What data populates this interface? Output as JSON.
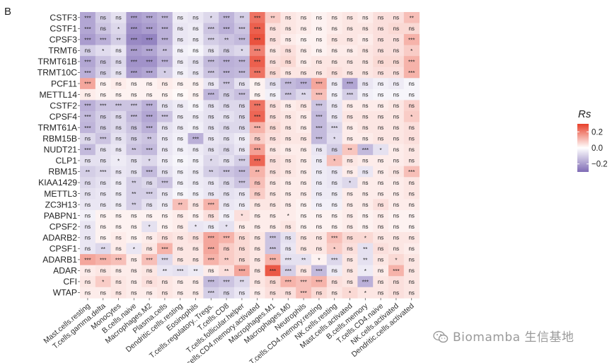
{
  "panel_label": "B",
  "watermark": "Biomamba 生信基地",
  "colors": {
    "low": "#7f6bb5",
    "mid": "#ffffff",
    "high": "#e8402a"
  },
  "chart_data": {
    "type": "heatmap",
    "title": "",
    "legend_title": "Rs",
    "legend_ticks": [
      0.2,
      0.0,
      -0.2
    ],
    "legend_tick_labels": [
      "0.2",
      "0.0",
      "−0.2"
    ],
    "value_range": [
      -0.3,
      0.3
    ],
    "rows": [
      "CSTF3",
      "CSTF1",
      "CPSF3",
      "TRMT6",
      "TRMT61B",
      "TRMT10C",
      "PCF11",
      "METTL14",
      "CSTF2",
      "CPSF4",
      "TRMT61A",
      "RBM15B",
      "NUDT21",
      "CLP1",
      "RBM15",
      "KIAA1429",
      "METTL3",
      "ZC3H13",
      "PABPN1",
      "CPSF2",
      "ADARB2",
      "CPSF1",
      "ADARB1",
      "ADAR",
      "CFI",
      "WTAP"
    ],
    "columns": [
      "Mast.cells.resting",
      "T.cells.gamma.delta",
      "Monocytes",
      "B.cells.naive",
      "Macrophages.M2",
      "Plasma.cells",
      "Dendritic.cells.resting",
      "Eosinophils",
      "T.cells.regulatory..Tregs.",
      "T.cells.CD8",
      "T.cells.follicular.helper",
      "T.cells.CD4.memory.activated",
      "Macrophages.M1",
      "Macrophages.M0",
      "Neutrophils",
      "T.cells.CD4.memory.resting",
      "NK.cells.resting",
      "Mast.cells.activated",
      "B.cells.memory",
      "T.cells.CD4.naive",
      "NK.cells.activated",
      "Dendritic.cells.activated"
    ],
    "values": [
      [
        -0.18,
        -0.1,
        -0.06,
        -0.2,
        -0.18,
        -0.15,
        -0.04,
        -0.05,
        -0.08,
        -0.15,
        -0.1,
        0.22,
        0.08,
        0.04,
        0.03,
        0.02,
        0.03,
        0.04,
        0.03,
        0.05,
        0.05,
        0.1
      ],
      [
        -0.18,
        -0.12,
        -0.08,
        -0.22,
        -0.2,
        -0.16,
        -0.05,
        -0.04,
        -0.12,
        -0.16,
        -0.12,
        0.25,
        0.05,
        0.04,
        0.03,
        0.02,
        0.03,
        0.04,
        0.04,
        0.05,
        0.06,
        0.06
      ],
      [
        -0.2,
        -0.16,
        -0.1,
        -0.24,
        -0.25,
        -0.16,
        -0.05,
        -0.04,
        -0.1,
        -0.12,
        -0.14,
        0.27,
        0.05,
        0.03,
        0.02,
        0.02,
        0.04,
        0.04,
        0.03,
        0.05,
        0.05,
        0.12
      ],
      [
        -0.1,
        -0.07,
        -0.05,
        -0.2,
        -0.18,
        -0.13,
        -0.03,
        -0.02,
        -0.06,
        -0.1,
        -0.08,
        0.2,
        0.04,
        0.05,
        0.03,
        0.02,
        0.03,
        0.03,
        0.04,
        0.05,
        0.05,
        0.08
      ],
      [
        -0.18,
        -0.12,
        -0.08,
        -0.22,
        -0.22,
        -0.16,
        -0.04,
        -0.06,
        -0.14,
        -0.16,
        -0.15,
        0.25,
        0.05,
        0.06,
        0.03,
        0.04,
        0.04,
        0.04,
        0.04,
        0.06,
        0.06,
        0.12
      ],
      [
        -0.16,
        -0.1,
        -0.06,
        -0.2,
        -0.18,
        -0.1,
        -0.03,
        -0.05,
        -0.12,
        -0.15,
        -0.14,
        0.22,
        0.06,
        0.04,
        0.04,
        0.04,
        0.05,
        0.04,
        0.04,
        0.05,
        0.05,
        0.12
      ],
      [
        0.14,
        0.02,
        0.03,
        0.02,
        0.02,
        0.03,
        0.02,
        0.02,
        -0.05,
        -0.12,
        -0.06,
        0.02,
        -0.06,
        -0.14,
        -0.16,
        0.14,
        -0.04,
        -0.18,
        -0.05,
        -0.03,
        -0.04,
        -0.02
      ],
      [
        0.03,
        0.02,
        0.02,
        0.02,
        0.02,
        0.02,
        0.01,
        0.02,
        -0.15,
        -0.1,
        -0.13,
        0.02,
        -0.03,
        -0.12,
        -0.08,
        0.1,
        -0.03,
        -0.1,
        -0.03,
        -0.02,
        -0.02,
        -0.02
      ],
      [
        -0.16,
        -0.12,
        -0.12,
        -0.12,
        -0.16,
        -0.06,
        -0.04,
        -0.02,
        -0.06,
        -0.08,
        -0.08,
        0.22,
        0.05,
        0.03,
        0.04,
        -0.12,
        -0.05,
        0.03,
        0.03,
        0.03,
        0.04,
        0.07
      ],
      [
        -0.14,
        -0.1,
        -0.08,
        -0.14,
        -0.18,
        -0.12,
        -0.04,
        -0.04,
        -0.06,
        -0.06,
        -0.08,
        0.24,
        0.05,
        0.04,
        0.03,
        -0.14,
        -0.05,
        0.04,
        0.04,
        0.04,
        0.04,
        0.08
      ],
      [
        -0.15,
        -0.1,
        -0.08,
        -0.12,
        -0.16,
        -0.06,
        -0.04,
        -0.03,
        -0.06,
        -0.08,
        -0.08,
        0.12,
        0.06,
        0.04,
        0.03,
        -0.14,
        -0.08,
        0.03,
        0.04,
        0.04,
        0.04,
        0.05
      ],
      [
        -0.08,
        -0.12,
        -0.06,
        -0.1,
        -0.12,
        -0.05,
        -0.03,
        -0.16,
        -0.05,
        -0.06,
        -0.04,
        0.08,
        0.05,
        0.04,
        0.04,
        -0.14,
        -0.07,
        0.03,
        0.03,
        0.04,
        0.04,
        0.05
      ],
      [
        -0.14,
        -0.06,
        -0.05,
        -0.12,
        -0.14,
        -0.05,
        -0.03,
        -0.04,
        -0.06,
        -0.08,
        -0.05,
        0.15,
        0.04,
        0.03,
        0.03,
        -0.05,
        -0.1,
        0.09,
        -0.14,
        -0.06,
        0.03,
        0.04
      ],
      [
        -0.06,
        -0.06,
        -0.04,
        -0.06,
        -0.08,
        -0.04,
        -0.02,
        -0.03,
        -0.08,
        -0.06,
        -0.1,
        0.24,
        0.05,
        0.04,
        0.03,
        -0.04,
        0.1,
        0.04,
        0.03,
        0.03,
        0.03,
        0.04
      ],
      [
        -0.1,
        -0.08,
        -0.05,
        -0.06,
        -0.14,
        -0.06,
        -0.03,
        -0.04,
        -0.1,
        -0.12,
        -0.14,
        0.12,
        0.05,
        0.04,
        0.03,
        -0.04,
        -0.05,
        0.03,
        -0.05,
        0.03,
        0.04,
        0.1
      ],
      [
        -0.08,
        -0.06,
        -0.04,
        -0.1,
        -0.08,
        -0.12,
        -0.03,
        -0.04,
        -0.05,
        -0.08,
        -0.12,
        0.1,
        0.04,
        0.03,
        0.03,
        -0.04,
        -0.05,
        -0.08,
        0.03,
        0.03,
        0.03,
        0.04
      ],
      [
        -0.06,
        -0.05,
        -0.04,
        -0.1,
        -0.1,
        -0.05,
        -0.02,
        -0.03,
        -0.05,
        -0.06,
        -0.05,
        0.08,
        0.04,
        0.03,
        0.03,
        -0.04,
        -0.04,
        0.03,
        0.03,
        0.03,
        0.03,
        0.04
      ],
      [
        -0.05,
        -0.05,
        -0.04,
        -0.1,
        -0.06,
        -0.04,
        0.1,
        0.04,
        0.12,
        -0.05,
        -0.04,
        0.04,
        0.04,
        0.03,
        0.02,
        -0.03,
        -0.03,
        0.03,
        0.03,
        0.05,
        0.03,
        0.03
      ],
      [
        -0.03,
        0.02,
        0.02,
        0.02,
        0.02,
        0.02,
        0.03,
        0.02,
        0.05,
        -0.03,
        0.05,
        0.03,
        0.03,
        0.03,
        0.02,
        0.02,
        0.02,
        0.03,
        0.02,
        0.03,
        0.02,
        0.02
      ],
      [
        -0.05,
        0.02,
        0.02,
        0.02,
        -0.06,
        0.02,
        0.03,
        -0.05,
        -0.04,
        -0.06,
        0.03,
        0.03,
        0.03,
        0.04,
        0.02,
        0.02,
        0.02,
        0.03,
        0.02,
        0.03,
        0.02,
        0.02
      ],
      [
        -0.05,
        0.02,
        0.03,
        0.02,
        0.03,
        0.05,
        0.04,
        0.05,
        0.14,
        0.12,
        0.06,
        0.04,
        -0.12,
        -0.06,
        0.04,
        0.04,
        0.1,
        0.06,
        0.06,
        0.04,
        0.04,
        0.04
      ],
      [
        -0.05,
        -0.08,
        0.03,
        -0.05,
        0.04,
        0.12,
        0.04,
        0.04,
        0.14,
        0.08,
        0.06,
        0.04,
        -0.12,
        -0.05,
        0.04,
        0.04,
        0.08,
        0.05,
        -0.06,
        0.05,
        0.04,
        0.03
      ],
      [
        0.14,
        0.12,
        0.1,
        0.03,
        0.1,
        -0.08,
        0.04,
        0.04,
        0.12,
        0.08,
        0.06,
        0.04,
        0.12,
        -0.06,
        -0.06,
        0.02,
        -0.08,
        0.04,
        -0.06,
        0.04,
        0.06,
        0.04
      ],
      [
        0.03,
        0.04,
        0.03,
        0.03,
        0.04,
        -0.05,
        -0.06,
        -0.04,
        0.03,
        0.05,
        0.14,
        0.04,
        0.26,
        -0.1,
        0.04,
        -0.14,
        -0.04,
        0.04,
        -0.04,
        0.03,
        0.12,
        0.04
      ],
      [
        0.04,
        0.08,
        0.04,
        0.03,
        0.05,
        0.04,
        0.03,
        0.03,
        -0.14,
        -0.12,
        -0.08,
        0.04,
        0.06,
        0.12,
        0.1,
        0.12,
        0.05,
        0.04,
        -0.16,
        0.04,
        0.05,
        0.04
      ],
      [
        0.03,
        0.03,
        0.04,
        0.03,
        0.03,
        0.04,
        0.03,
        0.03,
        -0.1,
        -0.08,
        -0.05,
        0.03,
        0.05,
        0.05,
        0.1,
        0.06,
        0.04,
        0.06,
        0.04,
        0.04,
        0.05,
        0.04
      ]
    ],
    "significance": [
      [
        "***",
        "ns",
        "ns",
        "***",
        "***",
        "***",
        "ns",
        "ns",
        "*",
        "***",
        "**",
        "***",
        "**",
        "ns",
        "ns",
        "ns",
        "ns",
        "ns",
        "ns",
        "ns",
        "ns",
        "**"
      ],
      [
        "***",
        "ns",
        "*",
        "***",
        "***",
        "***",
        "ns",
        "ns",
        "***",
        "***",
        "***",
        "***",
        "ns",
        "ns",
        "ns",
        "ns",
        "ns",
        "ns",
        "ns",
        "ns",
        "ns",
        "ns"
      ],
      [
        "***",
        "***",
        "**",
        "***",
        "***",
        "***",
        "ns",
        "ns",
        "***",
        "**",
        "***",
        "***",
        "ns",
        "ns",
        "ns",
        "ns",
        "ns",
        "ns",
        "ns",
        "ns",
        "ns",
        "***"
      ],
      [
        "ns",
        "*",
        "ns",
        "***",
        "***",
        "**",
        "ns",
        "ns",
        "ns",
        "ns",
        "*",
        "***",
        "ns",
        "ns",
        "ns",
        "ns",
        "ns",
        "ns",
        "ns",
        "ns",
        "ns",
        "*"
      ],
      [
        "***",
        "ns",
        "ns",
        "***",
        "***",
        "***",
        "ns",
        "ns",
        "***",
        "***",
        "***",
        "***",
        "ns",
        "ns",
        "ns",
        "ns",
        "ns",
        "ns",
        "ns",
        "ns",
        "ns",
        "***"
      ],
      [
        "***",
        "ns",
        "ns",
        "***",
        "***",
        "*",
        "ns",
        "ns",
        "***",
        "***",
        "***",
        "***",
        "ns",
        "ns",
        "ns",
        "ns",
        "ns",
        "ns",
        "ns",
        "ns",
        "ns",
        "***"
      ],
      [
        "***",
        "ns",
        "ns",
        "ns",
        "ns",
        "ns",
        "ns",
        "ns",
        "ns",
        "***",
        "ns",
        "ns",
        "ns",
        "***",
        "***",
        "***",
        "ns",
        "***",
        "ns",
        "ns",
        "ns",
        "ns"
      ],
      [
        "ns",
        "ns",
        "ns",
        "ns",
        "ns",
        "ns",
        "ns",
        "ns",
        "***",
        "ns",
        "***",
        "ns",
        "ns",
        "***",
        "**",
        "***",
        "ns",
        "***",
        "ns",
        "ns",
        "ns",
        "ns"
      ],
      [
        "***",
        "***",
        "***",
        "***",
        "***",
        "ns",
        "ns",
        "ns",
        "ns",
        "ns",
        "ns",
        "***",
        "ns",
        "ns",
        "ns",
        "***",
        "ns",
        "ns",
        "ns",
        "ns",
        "ns",
        "ns"
      ],
      [
        "***",
        "ns",
        "ns",
        "***",
        "***",
        "***",
        "ns",
        "ns",
        "ns",
        "ns",
        "ns",
        "***",
        "ns",
        "ns",
        "ns",
        "***",
        "ns",
        "ns",
        "ns",
        "ns",
        "ns",
        "*"
      ],
      [
        "***",
        "ns",
        "ns",
        "ns",
        "***",
        "ns",
        "ns",
        "ns",
        "ns",
        "ns",
        "ns",
        "***",
        "ns",
        "ns",
        "ns",
        "***",
        "***",
        "ns",
        "ns",
        "ns",
        "ns",
        "ns"
      ],
      [
        "ns",
        "***",
        "ns",
        "ns",
        "**",
        "ns",
        "ns",
        "***",
        "ns",
        "ns",
        "ns",
        "ns",
        "ns",
        "ns",
        "ns",
        "***",
        "*",
        "ns",
        "ns",
        "ns",
        "ns",
        "ns"
      ],
      [
        "***",
        "ns",
        "ns",
        "**",
        "***",
        "ns",
        "ns",
        "ns",
        "ns",
        "ns",
        "ns",
        "***",
        "ns",
        "ns",
        "ns",
        "ns",
        "ns",
        "**",
        "***",
        "*",
        "ns",
        "ns"
      ],
      [
        "ns",
        "ns",
        "*",
        "ns",
        "*",
        "ns",
        "ns",
        "ns",
        "*",
        "ns",
        "***",
        "***",
        "ns",
        "ns",
        "ns",
        "ns",
        "*",
        "ns",
        "ns",
        "ns",
        "ns",
        "ns"
      ],
      [
        "**",
        "***",
        "ns",
        "ns",
        "***",
        "ns",
        "ns",
        "ns",
        "**",
        "***",
        "***",
        "**",
        "ns",
        "ns",
        "ns",
        "ns",
        "ns",
        "ns",
        "ns",
        "ns",
        "ns",
        "***"
      ],
      [
        "ns",
        "ns",
        "ns",
        "**",
        "ns",
        "***",
        "ns",
        "ns",
        "ns",
        "ns",
        "***",
        "ns",
        "ns",
        "ns",
        "ns",
        "ns",
        "ns",
        "*",
        "ns",
        "ns",
        "ns",
        "ns"
      ],
      [
        "ns",
        "ns",
        "ns",
        "**",
        "***",
        "ns",
        "ns",
        "ns",
        "ns",
        "ns",
        "ns",
        "ns",
        "ns",
        "ns",
        "ns",
        "ns",
        "ns",
        "ns",
        "ns",
        "ns",
        "ns",
        "ns"
      ],
      [
        "ns",
        "ns",
        "ns",
        "**",
        "ns",
        "ns",
        "**",
        "ns",
        "***",
        "ns",
        "ns",
        "ns",
        "ns",
        "ns",
        "ns",
        "ns",
        "ns",
        "ns",
        "ns",
        "ns",
        "ns",
        "ns"
      ],
      [
        "ns",
        "ns",
        "ns",
        "ns",
        "ns",
        "ns",
        "ns",
        "ns",
        "ns",
        "ns",
        "*",
        "ns",
        "ns",
        "*",
        "ns",
        "ns",
        "ns",
        "ns",
        "ns",
        "ns",
        "ns",
        "ns"
      ],
      [
        "ns",
        "ns",
        "ns",
        "ns",
        "*",
        "ns",
        "ns",
        "*",
        "ns",
        "*",
        "ns",
        "ns",
        "ns",
        "ns",
        "ns",
        "ns",
        "ns",
        "ns",
        "ns",
        "ns",
        "ns",
        "ns"
      ],
      [
        "ns",
        "ns",
        "ns",
        "ns",
        "ns",
        "ns",
        "ns",
        "ns",
        "***",
        "***",
        "ns",
        "ns",
        "***",
        "ns",
        "ns",
        "ns",
        "***",
        "ns",
        "*",
        "ns",
        "ns",
        "ns"
      ],
      [
        "ns",
        "**",
        "ns",
        "*",
        "ns",
        "***",
        "ns",
        "ns",
        "***",
        "ns",
        "ns",
        "ns",
        "***",
        "ns",
        "ns",
        "ns",
        "*",
        "ns",
        "**",
        "ns",
        "ns",
        "ns"
      ],
      [
        "***",
        "***",
        "***",
        "ns",
        "***",
        "***",
        "ns",
        "ns",
        "***",
        "**",
        "ns",
        "ns",
        "***",
        "***",
        "**",
        "*",
        "***",
        "ns",
        "**",
        "ns",
        "*",
        "ns"
      ],
      [
        "ns",
        "ns",
        "ns",
        "ns",
        "ns",
        "**",
        "***",
        "**",
        "ns",
        "**",
        "***",
        "ns",
        "***",
        "***",
        "ns",
        "***",
        "ns",
        "ns",
        "*",
        "ns",
        "***",
        "ns"
      ],
      [
        "ns",
        "*",
        "ns",
        "ns",
        "ns",
        "ns",
        "ns",
        "ns",
        "***",
        "***",
        "**",
        "ns",
        "ns",
        "***",
        "***",
        "***",
        "ns",
        "ns",
        "***",
        "ns",
        "ns",
        "ns"
      ],
      [
        "ns",
        "ns",
        "ns",
        "ns",
        "ns",
        "ns",
        "ns",
        "ns",
        "***",
        "ns",
        "ns",
        "ns",
        "ns",
        "ns",
        "***",
        "ns",
        "ns",
        "*",
        "*",
        "ns",
        "ns",
        "ns"
      ]
    ]
  }
}
